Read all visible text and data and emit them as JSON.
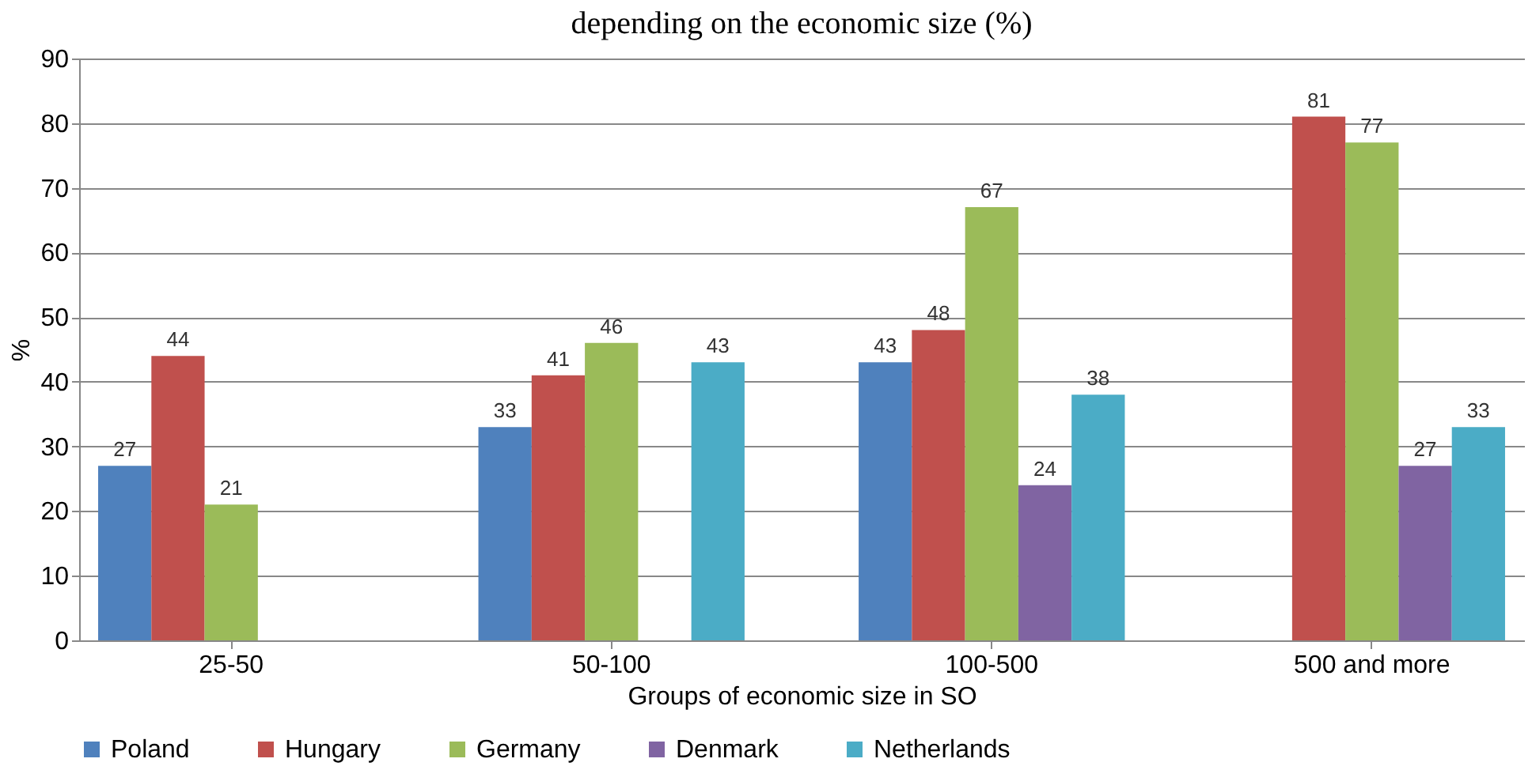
{
  "chart_data": {
    "type": "bar",
    "title": "depending on the economic size (%)",
    "categories": [
      "25-50",
      "50-100",
      "100-500",
      "500 and more"
    ],
    "series": [
      {
        "name": "Poland",
        "color": "#4f81bd",
        "values": [
          27,
          33,
          43,
          null
        ]
      },
      {
        "name": "Hungary",
        "color": "#c0504d",
        "values": [
          44,
          41,
          48,
          81
        ]
      },
      {
        "name": "Germany",
        "color": "#9bbb59",
        "values": [
          21,
          46,
          67,
          77
        ]
      },
      {
        "name": "Denmark",
        "color": "#8064a2",
        "values": [
          null,
          null,
          24,
          27
        ]
      },
      {
        "name": "Netherlands",
        "color": "#4bacc6",
        "values": [
          null,
          43,
          38,
          33
        ]
      }
    ],
    "xlabel": "Groups of economic size in SO",
    "ylabel": "%",
    "ylim": [
      0,
      90
    ],
    "yticks": [
      0,
      10,
      20,
      30,
      40,
      50,
      60,
      70,
      80,
      90
    ],
    "grid": "y",
    "legend": "bottom",
    "data_labels": true
  }
}
